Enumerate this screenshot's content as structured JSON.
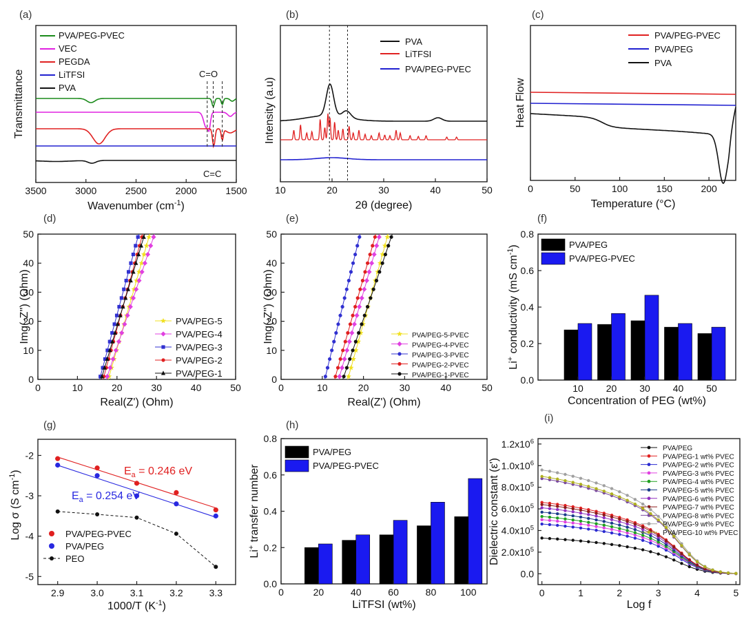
{
  "chart_data": [
    {
      "panel": "(a)",
      "type": "line",
      "title": "",
      "xlabel": "Wavenumber (cm",
      "xlabel_sup": "-1",
      "xlabel_end": ")",
      "ylabel": "Transmittance",
      "xlim": [
        3500,
        1500
      ],
      "xticks": [
        3500,
        3000,
        2500,
        2000,
        1500
      ],
      "series": [
        {
          "name": "PVA/PEG-PVEC",
          "color": "#1a8a1a"
        },
        {
          "name": "VEC",
          "color": "#e020e0"
        },
        {
          "name": "PEGDA",
          "color": "#e02020"
        },
        {
          "name": "LiTFSI",
          "color": "#2020d0"
        },
        {
          "name": "PVA",
          "color": "#111111"
        }
      ],
      "annotations": [
        "C=O",
        "C=C"
      ]
    },
    {
      "panel": "(b)",
      "type": "line",
      "xlabel": "2θ (degree)",
      "ylabel": "Intensity (a.u)",
      "xlim": [
        10,
        50
      ],
      "xticks": [
        10,
        20,
        30,
        40,
        50
      ],
      "series": [
        {
          "name": "PVA",
          "color": "#111111"
        },
        {
          "name": "LiTFSI",
          "color": "#e02020"
        },
        {
          "name": "PVA/PEG-PVEC",
          "color": "#2020d0"
        }
      ],
      "reference_lines": [
        19.5,
        23
      ]
    },
    {
      "panel": "(c)",
      "type": "line",
      "xlabel": "Temperature (°C)",
      "ylabel": "Heat Flow",
      "xlim": [
        0,
        230
      ],
      "xticks": [
        0,
        50,
        100,
        150,
        200
      ],
      "series": [
        {
          "name": "PVA/PEG-PVEC",
          "color": "#e02020"
        },
        {
          "name": "PVA/PEG",
          "color": "#2020d0"
        },
        {
          "name": "PVA",
          "color": "#111111"
        }
      ]
    },
    {
      "panel": "(d)",
      "type": "scatter",
      "xlabel": "Real(Z') (Ohm)",
      "ylabel": "Img(-Z'') (Ohm)",
      "xlim": [
        0,
        50
      ],
      "ylim": [
        0,
        50
      ],
      "xticks": [
        0,
        10,
        20,
        30,
        40,
        50
      ],
      "yticks": [
        0,
        10,
        20,
        30,
        40,
        50
      ],
      "series": [
        {
          "name": "PVA/PEG-5",
          "color": "#f0e020",
          "marker": "star",
          "x0": 17.8,
          "x1": 28.3
        },
        {
          "name": "PVA/PEG-4",
          "color": "#e040e0",
          "marker": "diamond",
          "x0": 17.3,
          "x1": 29.5
        },
        {
          "name": "PVA/PEG-3",
          "color": "#3030d0",
          "marker": "square",
          "x0": 15.6,
          "x1": 25.5
        },
        {
          "name": "PVA/PEG-2",
          "color": "#e02020",
          "marker": "circle",
          "x0": 16.5,
          "x1": 26.5
        },
        {
          "name": "PVA/PEG-1",
          "color": "#111111",
          "marker": "triangle",
          "x0": 16.0,
          "x1": 27.0
        }
      ]
    },
    {
      "panel": "(e)",
      "type": "scatter",
      "xlabel": "Real(Z') (Ohm)",
      "ylabel": "Img(-Z'') (Ohm)",
      "xlim": [
        0,
        50
      ],
      "ylim": [
        0,
        50
      ],
      "xticks": [
        0,
        10,
        20,
        30,
        40,
        50
      ],
      "yticks": [
        0,
        10,
        20,
        30,
        40,
        50
      ],
      "series": [
        {
          "name": "PVA/PEG-5-PVEC",
          "color": "#f0e020",
          "marker": "star",
          "x0": 16.2,
          "x1": 26.0
        },
        {
          "name": "PVA/PEG-4-PVEC",
          "color": "#e040e0",
          "marker": "diamond",
          "x0": 14.0,
          "x1": 24.0
        },
        {
          "name": "PVA/PEG-3-PVEC",
          "color": "#3030d0",
          "marker": "circle",
          "x0": 10.6,
          "x1": 19.2
        },
        {
          "name": "PVA/PEG-2-PVEC",
          "color": "#e02020",
          "marker": "circle",
          "x0": 13.0,
          "x1": 23.0
        },
        {
          "name": "PVA/PEG-1-PVEC",
          "color": "#111111",
          "marker": "circle",
          "x0": 15.0,
          "x1": 27.0
        }
      ]
    },
    {
      "panel": "(f)",
      "type": "bar",
      "xlabel": "Concentration of PEG (wt%)",
      "ylabel_pre": "Li",
      "ylabel_sup": "+",
      "ylabel_rest": " conductivity (mS cm",
      "ylabel_sup2": "-1",
      "ylabel_end": ")",
      "ylim": [
        0,
        0.8
      ],
      "yticks": [
        "0.0",
        "0.2",
        "0.4",
        "0.6",
        "0.8"
      ],
      "categories": [
        "10",
        "20",
        "30",
        "40",
        "50"
      ],
      "series": [
        {
          "name": "PVA/PEG",
          "color": "#000000",
          "values": [
            0.275,
            0.305,
            0.325,
            0.29,
            0.255
          ]
        },
        {
          "name": "PVA/PEG-PVEC",
          "color": "#1a1af0",
          "values": [
            0.31,
            0.365,
            0.465,
            0.31,
            0.29
          ]
        }
      ]
    },
    {
      "panel": "(g)",
      "type": "scatter",
      "xlabel": "1000/T (K",
      "xlabel_sup": "-1",
      "xlabel_end": ")",
      "ylabel": "Log σ (S cm",
      "ylabel_sup": "-1",
      "ylabel_end": ")",
      "xlim": [
        2.85,
        3.35
      ],
      "ylim": [
        -5.2,
        -1.6
      ],
      "xticks": [
        "2.9",
        "3.0",
        "3.1",
        "3.2",
        "3.3"
      ],
      "yticks": [
        "-5",
        "-4",
        "-3",
        "-2"
      ],
      "x": [
        2.9,
        3.0,
        3.1,
        3.2,
        3.3
      ],
      "series": [
        {
          "name": "PVA/PEG-PVEC",
          "color": "#e02020",
          "values": [
            -2.08,
            -2.31,
            -2.69,
            -2.92,
            -3.35
          ]
        },
        {
          "name": "PVA/PEG",
          "color": "#2828e0",
          "values": [
            -2.24,
            -2.5,
            -3.0,
            -3.2,
            -3.5
          ]
        },
        {
          "name": "PEO",
          "color": "#111111",
          "values": [
            -3.39,
            -3.46,
            -3.54,
            -3.94,
            -4.76
          ]
        }
      ],
      "annotations": [
        {
          "text_pre": "E",
          "text_sub": "a",
          "text": " = 0.246 eV",
          "color": "#e02020"
        },
        {
          "text_pre": "E",
          "text_sub": "a",
          "text": " = 0.254 eV",
          "color": "#2828e0"
        }
      ]
    },
    {
      "panel": "(h)",
      "type": "bar",
      "xlabel": "LiTFSI (wt%)",
      "ylabel_pre": "Li",
      "ylabel_sup": "+",
      "ylabel_rest": " transfer number",
      "ylim": [
        0,
        0.8
      ],
      "yticks": [
        "0.0",
        "0.2",
        "0.4",
        "0.6",
        "0.8"
      ],
      "xticks": [
        "0",
        "20",
        "40",
        "60",
        "80",
        "100"
      ],
      "categories": [
        "20",
        "40",
        "60",
        "80",
        "100"
      ],
      "series": [
        {
          "name": "PVA/PEG",
          "color": "#000000",
          "values": [
            0.2,
            0.24,
            0.27,
            0.32,
            0.37
          ]
        },
        {
          "name": "PVA/PEG-PVEC",
          "color": "#1a1af0",
          "values": [
            0.22,
            0.27,
            0.35,
            0.45,
            0.58
          ]
        }
      ]
    },
    {
      "panel": "(i)",
      "type": "line",
      "xlabel": "Log f",
      "ylabel": "Dielectric constant (ε')",
      "xlim": [
        -0.1,
        5.1
      ],
      "ylim": [
        -0.1,
        1.25
      ],
      "xticks": [
        "0",
        "1",
        "2",
        "3",
        "4",
        "5"
      ],
      "yticks": [
        {
          "v": 0.0,
          "label": "0.0"
        },
        {
          "v": 0.2,
          "label": "2.0x10",
          "sup": "5"
        },
        {
          "v": 0.4,
          "label": "4.0x10",
          "sup": "5"
        },
        {
          "v": 0.6,
          "label": "6.0x10",
          "sup": "5"
        },
        {
          "v": 0.8,
          "label": "8.0x10",
          "sup": "5"
        },
        {
          "v": 1.0,
          "label": "1.0x10",
          "sup": "6"
        },
        {
          "v": 1.2,
          "label": "1.2x10",
          "sup": "6"
        }
      ],
      "series": [
        {
          "name": "PVA/PEG",
          "color": "#111111",
          "start": 0.33
        },
        {
          "name": "PVA/PEG-1 wt% PVEC",
          "color": "#e02020",
          "start": 0.66
        },
        {
          "name": "PVA/PEG-2 wt% PVEC",
          "color": "#2a2ad0",
          "start": 0.46
        },
        {
          "name": "PVA/PEG-3 wt% PVEC",
          "color": "#e040e0",
          "start": 0.5
        },
        {
          "name": "PVA/PEG-4 wt% PVEC",
          "color": "#20a020",
          "start": 0.53
        },
        {
          "name": "PVA/PEG-5 wt% PVEC",
          "color": "#1a3a8a",
          "start": 0.57
        },
        {
          "name": "PVA/PEG-6 wt% PVEC",
          "color": "#9030c0",
          "start": 0.61
        },
        {
          "name": "PVA/PEG-7 wt% PVEC",
          "color": "#8a1a1a",
          "start": 0.64
        },
        {
          "name": "PVA/PEG-8 wt% PVEC",
          "color": "#7a4aa0",
          "start": 0.88
        },
        {
          "name": "PVA/PEG-9 wt% PVEC",
          "color": "#a0a0a0",
          "start": 0.96
        },
        {
          "name": "PVA/PEG-10 wt% PVEC",
          "color": "#b0b020",
          "start": 0.9
        }
      ]
    }
  ]
}
